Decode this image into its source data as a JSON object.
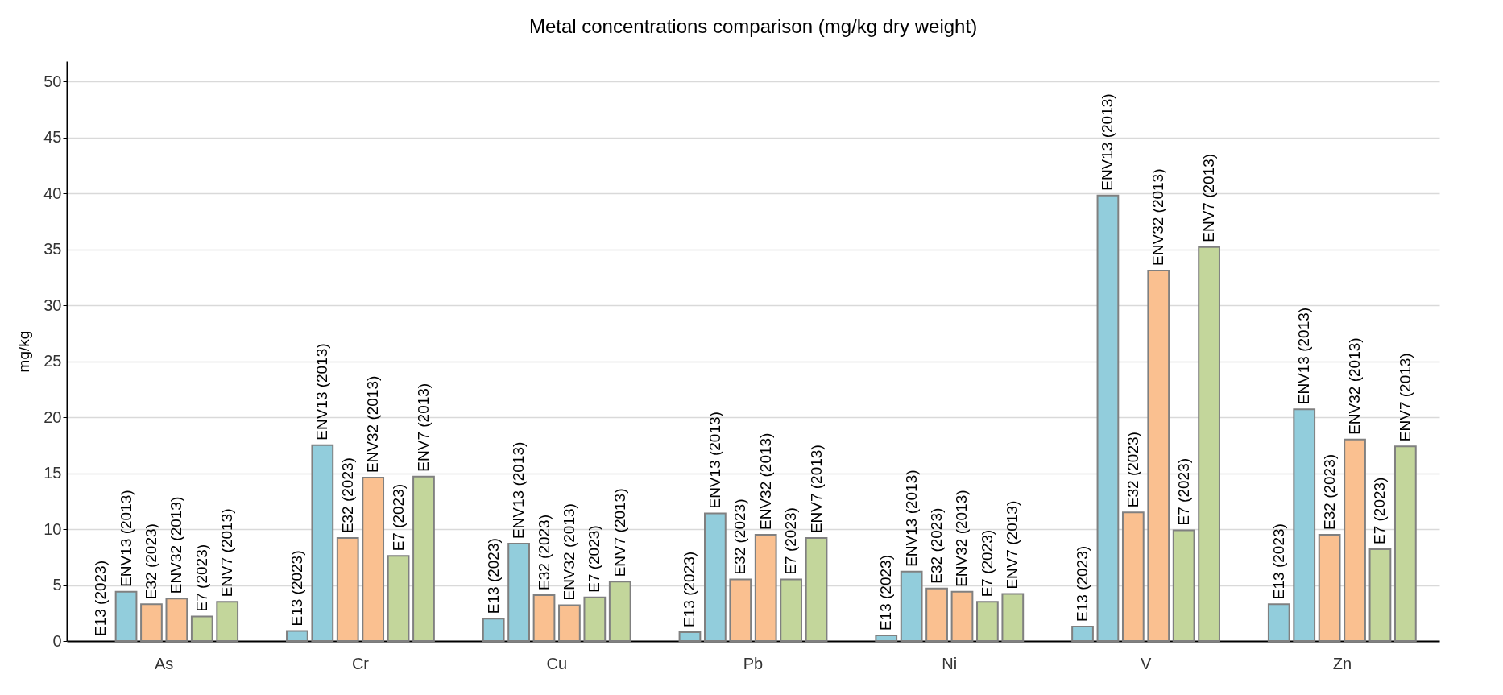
{
  "chart_data": {
    "type": "bar",
    "title": "Metal concentrations comparison (mg/kg dry weight)",
    "ylabel": "mg/kg",
    "categories": [
      "As",
      "Cr",
      "Cu",
      "Pb",
      "Ni",
      "V",
      "Zn"
    ],
    "series": [
      {
        "name": "E13 (2023)",
        "color": "#92cddc",
        "values": [
          0,
          0.9,
          2.0,
          0.8,
          0.5,
          1.3,
          3.3
        ]
      },
      {
        "name": "ENV13 (2013)",
        "color": "#92cddc",
        "values": [
          4.4,
          17.5,
          8.7,
          11.4,
          6.2,
          39.8,
          20.7
        ]
      },
      {
        "name": "E32 (2023)",
        "color": "#fac090",
        "values": [
          3.3,
          9.2,
          4.1,
          5.5,
          4.7,
          11.5,
          9.5
        ]
      },
      {
        "name": "ENV32 (2013)",
        "color": "#fac090",
        "values": [
          3.8,
          14.6,
          3.2,
          9.5,
          4.4,
          33.1,
          18.0
        ]
      },
      {
        "name": "E7 (2023)",
        "color": "#c3d69b",
        "values": [
          2.2,
          7.6,
          3.9,
          5.5,
          3.5,
          9.9,
          8.2
        ]
      },
      {
        "name": "ENV7 (2013)",
        "color": "#c3d69b",
        "values": [
          3.5,
          14.7,
          5.3,
          9.2,
          4.2,
          35.2,
          17.4
        ]
      }
    ],
    "ylim": [
      0,
      51.8
    ],
    "yticks": [
      0,
      5,
      10,
      15,
      20,
      25,
      30,
      35,
      40,
      45,
      50
    ],
    "grid": "y"
  }
}
